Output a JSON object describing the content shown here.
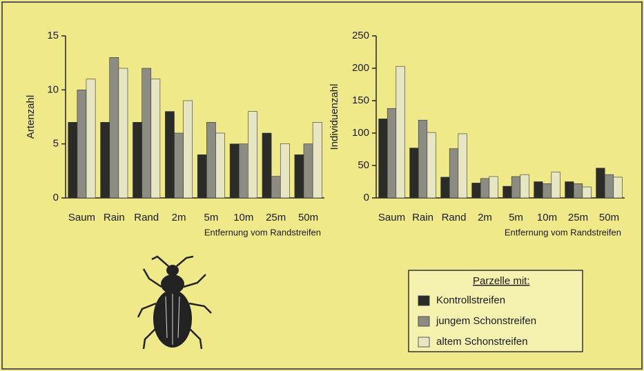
{
  "chart_data": [
    {
      "type": "bar",
      "ylabel": "Artenzahl",
      "xlabel": "Entfernung vom Randstreifen",
      "categories": [
        "Saum",
        "Rain",
        "Rand",
        "2m",
        "5m",
        "10m",
        "25m",
        "50m"
      ],
      "ylim": [
        0,
        15
      ],
      "yticks": [
        0,
        5,
        10,
        15
      ],
      "legend_title": "Parzelle mit:",
      "series": [
        {
          "name": "Kontrollstreifen",
          "color": "#2b2b28",
          "values": [
            7,
            7,
            7,
            8,
            4,
            5,
            6,
            4
          ]
        },
        {
          "name": "jungem Schonstreifen",
          "color": "#8c8c82",
          "values": [
            10,
            13,
            12,
            6,
            7,
            5,
            2,
            5
          ]
        },
        {
          "name": "altem Schonstreifen",
          "color": "#e6e6c2",
          "values": [
            11,
            12,
            11,
            9,
            6,
            8,
            5,
            7
          ]
        }
      ]
    },
    {
      "type": "bar",
      "ylabel": "Individuenzahl",
      "xlabel": "Entfernung vom Randstreifen",
      "categories": [
        "Saum",
        "Rain",
        "Rand",
        "2m",
        "5m",
        "10m",
        "25m",
        "50m"
      ],
      "ylim": [
        0,
        250
      ],
      "yticks": [
        0,
        50,
        100,
        150,
        200,
        250
      ],
      "series": [
        {
          "color": "#2b2b28",
          "values": [
            122,
            77,
            32,
            23,
            18,
            25,
            25,
            46
          ]
        },
        {
          "color": "#8c8c82",
          "values": [
            138,
            120,
            76,
            30,
            33,
            22,
            22,
            36
          ]
        },
        {
          "color": "#e6e6c2",
          "values": [
            203,
            101,
            99,
            33,
            36,
            40,
            17,
            32
          ]
        }
      ]
    }
  ]
}
